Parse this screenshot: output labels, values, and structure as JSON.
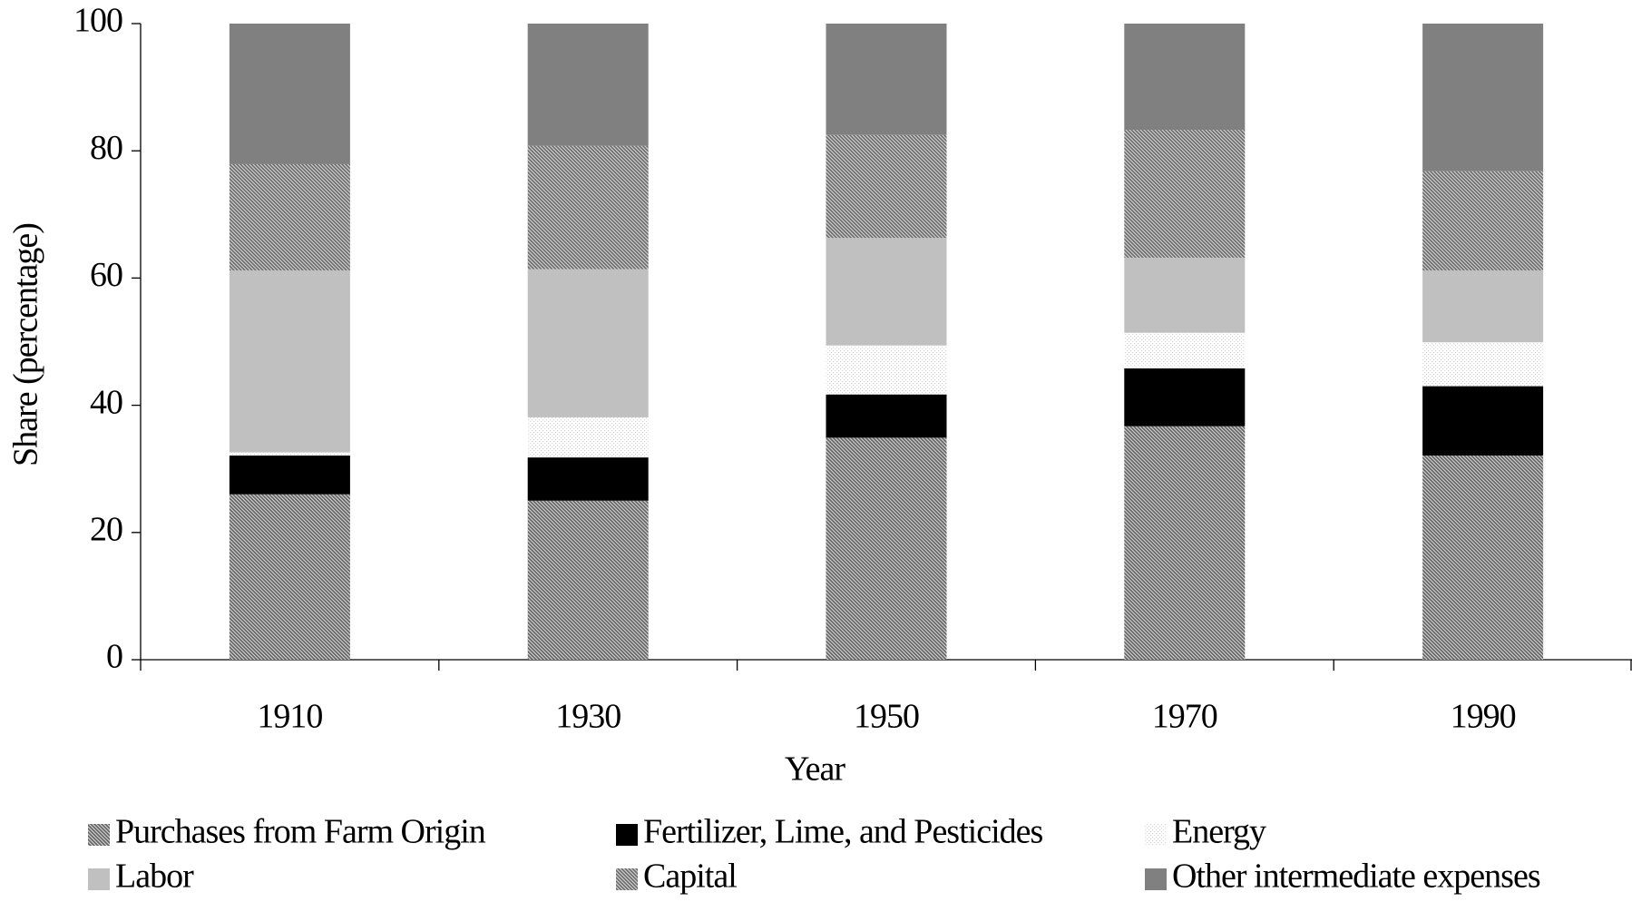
{
  "chart_data": {
    "type": "stacked_bar",
    "x_label": "Year",
    "y_label": "Share (percentage)",
    "categories": [
      "1910",
      "1930",
      "1950",
      "1970",
      "1990"
    ],
    "series": [
      {
        "name": "Purchases from Farm Origin",
        "color": "#606060",
        "pattern": "diagonal",
        "values": [
          26.0,
          25.0,
          34.9,
          36.7,
          32.1
        ]
      },
      {
        "name": "Fertilizer, Lime, and Pesticides",
        "color": "#000000",
        "pattern": "solid",
        "values": [
          6.1,
          6.8,
          6.8,
          9.1,
          10.9
        ]
      },
      {
        "name": "Energy",
        "color": "#d8d8d8",
        "pattern": "dots",
        "values": [
          0.5,
          6.3,
          7.7,
          5.6,
          6.9
        ]
      },
      {
        "name": "Labor",
        "color": "#c0c0c0",
        "pattern": "solid",
        "values": [
          28.6,
          23.3,
          16.9,
          11.8,
          11.3
        ]
      },
      {
        "name": "Capital",
        "color": "#6a6a6a",
        "pattern": "diagonal",
        "values": [
          16.7,
          19.4,
          16.2,
          20.1,
          15.6
        ]
      },
      {
        "name": "Other intermediate expenses",
        "color": "#808080",
        "pattern": "solid",
        "values": [
          22.1,
          19.2,
          17.5,
          16.7,
          23.2
        ]
      }
    ],
    "ylim": [
      0,
      100
    ],
    "yticks": [
      0,
      20,
      40,
      60,
      80,
      100
    ],
    "grid": false,
    "legend": "bottom"
  }
}
